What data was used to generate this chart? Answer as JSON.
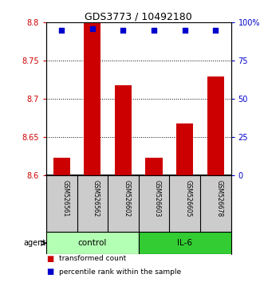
{
  "title": "GDS3773 / 10492180",
  "samples": [
    "GSM526561",
    "GSM526562",
    "GSM526602",
    "GSM526603",
    "GSM526605",
    "GSM526678"
  ],
  "red_values": [
    8.623,
    8.8,
    8.718,
    8.623,
    8.668,
    8.73
  ],
  "blue_values": [
    95,
    96,
    95,
    95,
    95,
    95
  ],
  "ylim_left": [
    8.6,
    8.8
  ],
  "ylim_right": [
    0,
    100
  ],
  "yticks_left": [
    8.6,
    8.65,
    8.7,
    8.75,
    8.8
  ],
  "yticks_right": [
    0,
    25,
    50,
    75,
    100
  ],
  "ytick_labels_left": [
    "8.6",
    "8.65",
    "8.7",
    "8.75",
    "8.8"
  ],
  "ytick_labels_right": [
    "0",
    "25",
    "50",
    "75",
    "100%"
  ],
  "groups": [
    {
      "label": "control",
      "indices": [
        0,
        1,
        2
      ],
      "color": "#b3ffb3"
    },
    {
      "label": "IL-6",
      "indices": [
        3,
        4,
        5
      ],
      "color": "#33cc33"
    }
  ],
  "red_color": "#cc0000",
  "blue_color": "#0000cc",
  "bar_width": 0.55,
  "agent_label": "agent",
  "legend_red": "transformed count",
  "legend_blue": "percentile rank within the sample",
  "background_color": "#ffffff",
  "sample_box_color": "#cccccc"
}
